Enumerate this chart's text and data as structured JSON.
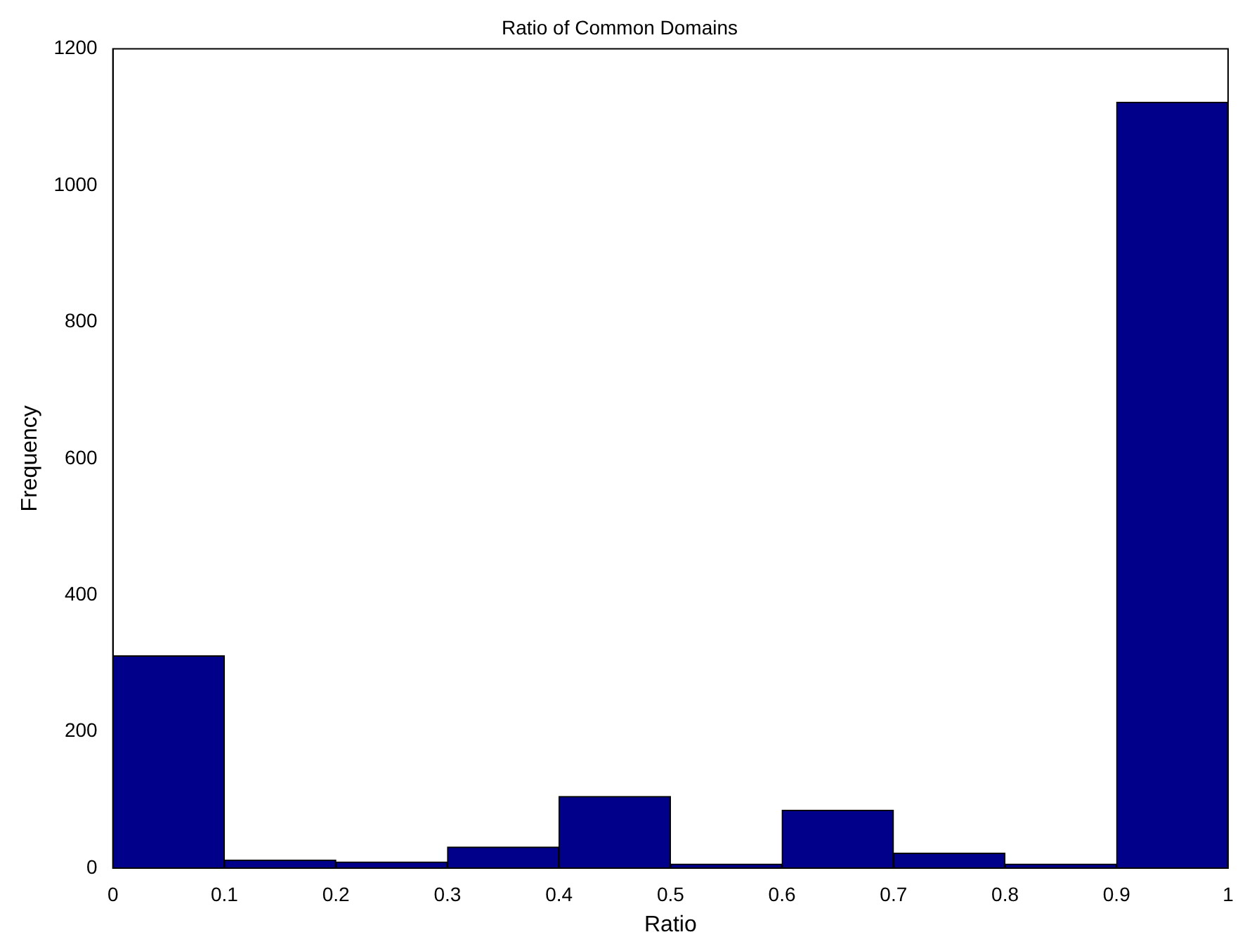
{
  "chart_data": {
    "type": "histogram",
    "title": "Ratio of Common Domains",
    "xlabel": "Ratio",
    "ylabel": "Frequency",
    "bins": [
      0,
      0.1,
      0.2,
      0.3,
      0.4,
      0.5,
      0.6,
      0.7,
      0.8,
      0.9,
      1
    ],
    "values": [
      311,
      12,
      9,
      31,
      105,
      6,
      85,
      22,
      6,
      1122
    ],
    "color": "#00008b",
    "xlim": [
      0,
      1
    ],
    "xticks": [
      0,
      0.1,
      0.2,
      0.3,
      0.4,
      0.5,
      0.6,
      0.7,
      0.8,
      0.9,
      1
    ],
    "ylim": [
      0,
      1200
    ],
    "yticks": [
      0,
      200,
      400,
      600,
      800,
      1000,
      1200
    ],
    "grid": false,
    "legend": false
  }
}
